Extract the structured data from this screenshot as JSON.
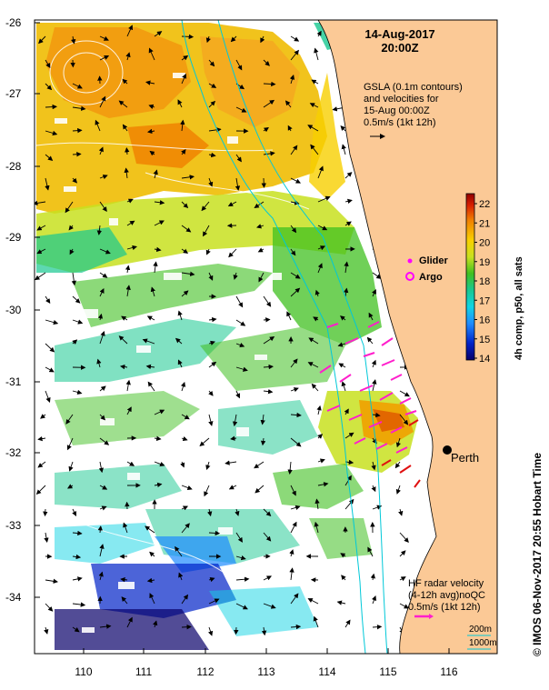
{
  "header": {
    "date": "14-Aug-2017",
    "time": "20:00Z"
  },
  "gsla_note": {
    "line1": "GSLA (0.1m contours)",
    "line2": "and velocities for",
    "line3": "15-Aug 00:00Z",
    "line4": "0.5m/s (1kt 12h)"
  },
  "legend": {
    "glider": "Glider",
    "argo": "Argo"
  },
  "colorbar": {
    "label": "4h comp, p50, all sats",
    "min": 14,
    "max": 22,
    "ticks": [
      "22",
      "21",
      "20",
      "19",
      "18",
      "17",
      "16",
      "15",
      "14"
    ]
  },
  "city": {
    "name": "Perth"
  },
  "hf_radar": {
    "line1": "HF radar velocity",
    "line2": "(4-12h avg)noQC",
    "line3": "0.5m/s (1kt 12h)"
  },
  "isobaths": {
    "shallow": "200m",
    "deep": "1000m"
  },
  "credit": "© IMOS 06-Nov-2017 20:55 Hobart Time",
  "axes": {
    "y_ticks": [
      "-26",
      "-27",
      "-28",
      "-29",
      "-30",
      "-31",
      "-32",
      "-33",
      "-34"
    ],
    "x_ticks": [
      "110",
      "111",
      "112",
      "113",
      "114",
      "115",
      "116"
    ]
  },
  "colors": {
    "land": "#fbc996",
    "sea": "#ffffff",
    "isobath_200": "#00c8d8",
    "isobath_1000": "#00c8d8",
    "hf_arrow": "#ff1ecc",
    "glider": "#ff00ff"
  }
}
